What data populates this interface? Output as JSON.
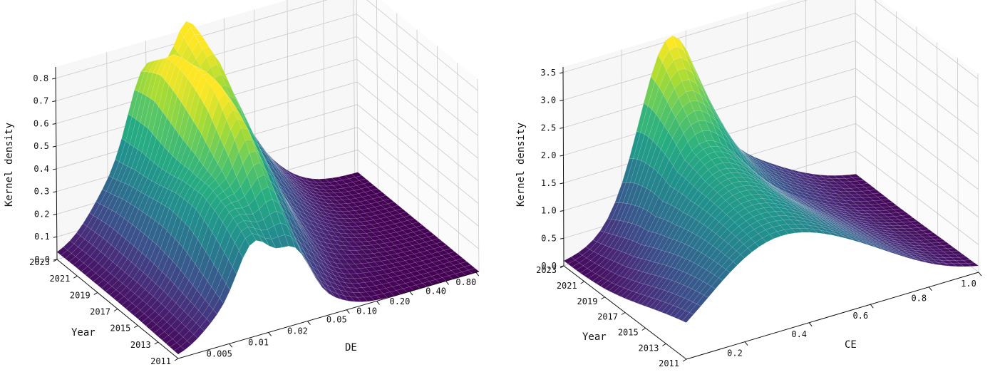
{
  "chart_data": [
    {
      "type": "surface",
      "xlabel": "DE",
      "ylabel": "Year",
      "zlabel": "Kernel density",
      "x_scale": "log",
      "x_ticks": [
        "0.005",
        "0.01",
        "0.02",
        "0.05",
        "0.10",
        "0.20",
        "0.40",
        "0.80"
      ],
      "year_ticks": [
        "2011",
        "2013",
        "2015",
        "2017",
        "2019",
        "2021",
        "2023"
      ],
      "z_ticks": [
        "0.0",
        "0.1",
        "0.2",
        "0.3",
        "0.4",
        "0.5",
        "0.6",
        "0.7",
        "0.8"
      ],
      "zlim": [
        0,
        0.85
      ],
      "years": [
        2011,
        2013,
        2015,
        2017,
        2019,
        2021,
        2023
      ],
      "peak_density_by_year": [
        0.42,
        0.55,
        0.68,
        0.76,
        0.8,
        0.84,
        0.82
      ],
      "colormap": "viridis"
    },
    {
      "type": "surface",
      "xlabel": "CE",
      "ylabel": "Year",
      "zlabel": "Kernel density",
      "x_scale": "linear",
      "x_ticks": [
        "0.2",
        "0.4",
        "0.6",
        "0.8",
        "1.0"
      ],
      "year_ticks": [
        "2011",
        "2013",
        "2015",
        "2017",
        "2019",
        "2021",
        "2023"
      ],
      "z_ticks": [
        "0.0",
        "0.5",
        "1.0",
        "1.5",
        "2.0",
        "2.5",
        "3.0",
        "3.5"
      ],
      "zlim": [
        0,
        3.6
      ],
      "years": [
        2011,
        2013,
        2015,
        2017,
        2019,
        2021,
        2023
      ],
      "peak_density_by_year": [
        1.7,
        1.8,
        1.9,
        2.0,
        2.2,
        2.8,
        3.5
      ],
      "colormap": "viridis"
    }
  ]
}
